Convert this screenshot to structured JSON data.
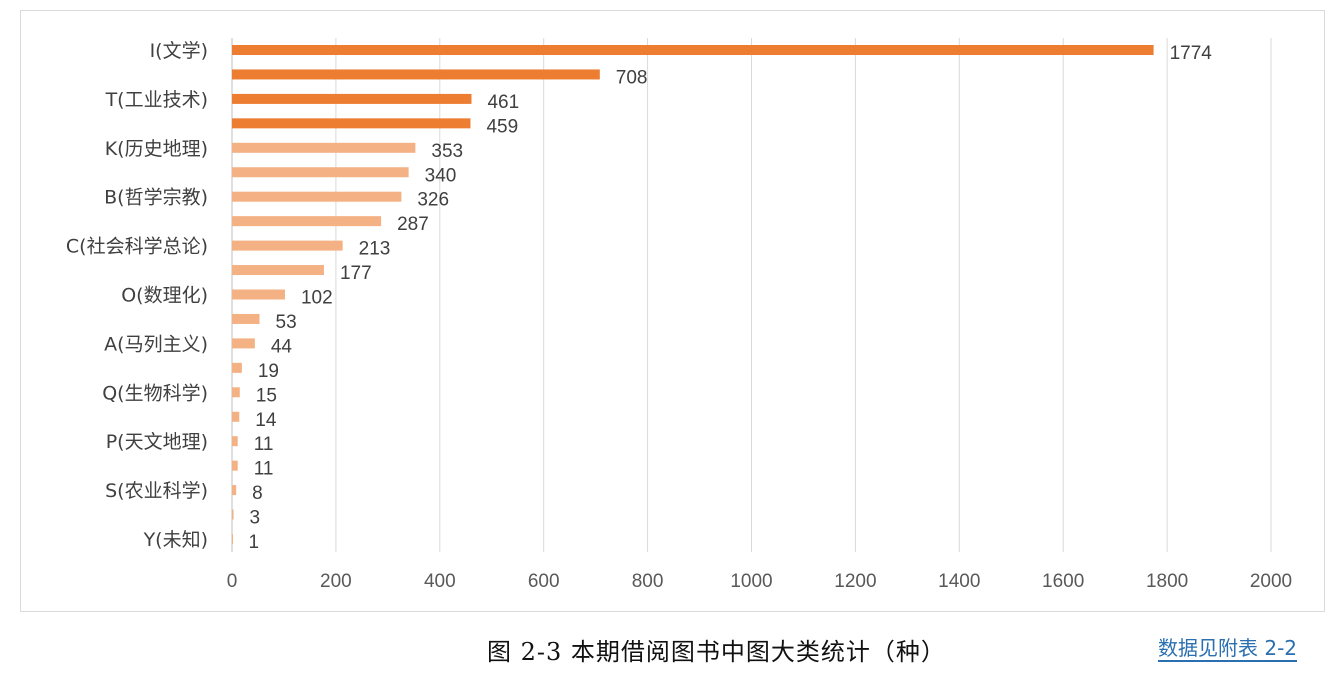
{
  "chart_data": {
    "type": "bar",
    "orientation": "horizontal",
    "category_labels_shown": [
      "I(文学)",
      "",
      "T(工业技术)",
      "",
      "K(历史地理)",
      "",
      "B(哲学宗教)",
      "",
      "C(社会科学总论)",
      "",
      "O(数理化)",
      "",
      "A(马列主义)",
      "",
      "Q(生物科学)",
      "",
      "P(天文地理)",
      "",
      "S(农业科学)",
      "",
      "Y(未知)"
    ],
    "values": [
      1774,
      708,
      461,
      459,
      353,
      340,
      326,
      287,
      213,
      177,
      102,
      53,
      44,
      19,
      15,
      14,
      11,
      11,
      8,
      3,
      1
    ],
    "xlim": [
      0,
      2000
    ],
    "xticks": [
      0,
      200,
      400,
      600,
      800,
      1000,
      1200,
      1400,
      1600,
      1800,
      2000
    ],
    "grid": "vertical",
    "colors": {
      "top": "#ED7D31",
      "rest": "#F4B183",
      "grid": "#d9d9d9"
    },
    "data_labels": true
  },
  "caption": "图 2-3  本期借阅图书中图大类统计（种）",
  "note_link": "数据见附表 2-2"
}
